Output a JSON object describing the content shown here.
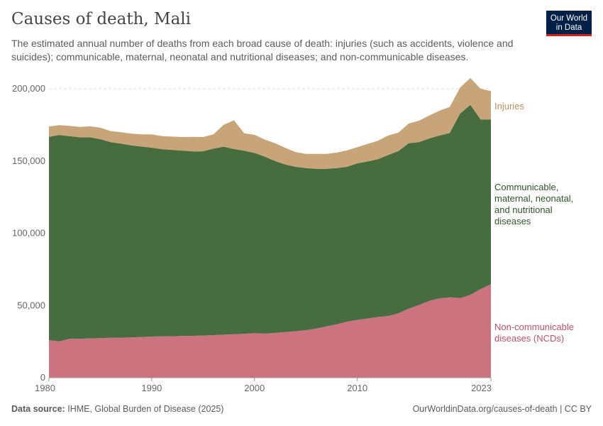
{
  "header": {
    "title": "Causes of death, Mali",
    "subtitle": "The estimated annual number of deaths from each broad cause of death: injuries (such as accidents, violence and suicides); communicable, maternal, neonatal and nutritional diseases; and non-communicable diseases.",
    "logo": "Our World in Data"
  },
  "footer": {
    "source_label": "Data source:",
    "source": "IHME, Global Burden of Disease (2025)",
    "link": "OurWorldinData.org/causes-of-death | CC BY"
  },
  "chart_data": {
    "type": "area",
    "stacked": true,
    "x_start": 1980,
    "x_end": 2023,
    "x_ticks": [
      "1980",
      "1990",
      "2000",
      "2010",
      "2023"
    ],
    "y_ticks": [
      "0",
      "50,000",
      "100,000",
      "150,000",
      "200,000"
    ],
    "ylim": [
      0,
      200000
    ],
    "grid": "horizontal dashed",
    "legend": "right, inline labels",
    "series": [
      {
        "name": "Non-communicable diseases (NCDs)",
        "color": "#CC7380",
        "values": [
          26000,
          25200,
          26900,
          27000,
          27200,
          27400,
          27600,
          27700,
          27900,
          28200,
          28500,
          28600,
          28700,
          28900,
          29000,
          29200,
          29500,
          29800,
          30100,
          30400,
          30800,
          30500,
          31000,
          31600,
          32200,
          32900,
          34000,
          35500,
          37000,
          38800,
          40000,
          41000,
          42000,
          42700,
          44600,
          47800,
          50300,
          53200,
          54900,
          55700,
          55100,
          57300,
          61400,
          64700
        ]
      },
      {
        "name": "Communicable, maternal, neonatal, and nutritional diseases",
        "color": "#476C40",
        "values": [
          140700,
          142800,
          140300,
          139400,
          139200,
          137700,
          135500,
          134300,
          132900,
          131800,
          130700,
          129600,
          129000,
          128300,
          127600,
          127500,
          129100,
          130100,
          128200,
          126700,
          124800,
          122500,
          119000,
          116000,
          113800,
          112200,
          110600,
          109100,
          108100,
          107200,
          108400,
          108700,
          109200,
          111400,
          112300,
          114500,
          112800,
          112400,
          112700,
          113700,
          127700,
          131500,
          117300,
          114000
        ]
      },
      {
        "name": "Injuries",
        "color": "#C8A579",
        "values": [
          7100,
          6800,
          7100,
          7200,
          7600,
          7900,
          7600,
          7900,
          8200,
          8400,
          9200,
          9000,
          9200,
          9400,
          10100,
          9900,
          9800,
          15200,
          19900,
          12100,
          12500,
          11800,
          12300,
          11500,
          10100,
          9800,
          10300,
          10300,
          10700,
          11400,
          11200,
          12100,
          12800,
          13500,
          12800,
          13600,
          14800,
          15900,
          17200,
          18000,
          18000,
          18600,
          21300,
          19700
        ]
      }
    ],
    "labels": {
      "injuries": [
        "Injuries"
      ],
      "cmnn": [
        "Communicable,",
        "maternal, neonatal,",
        "and nutritional",
        "diseases"
      ],
      "ncd": [
        "Non-communicable",
        "diseases (NCDs)"
      ]
    }
  }
}
